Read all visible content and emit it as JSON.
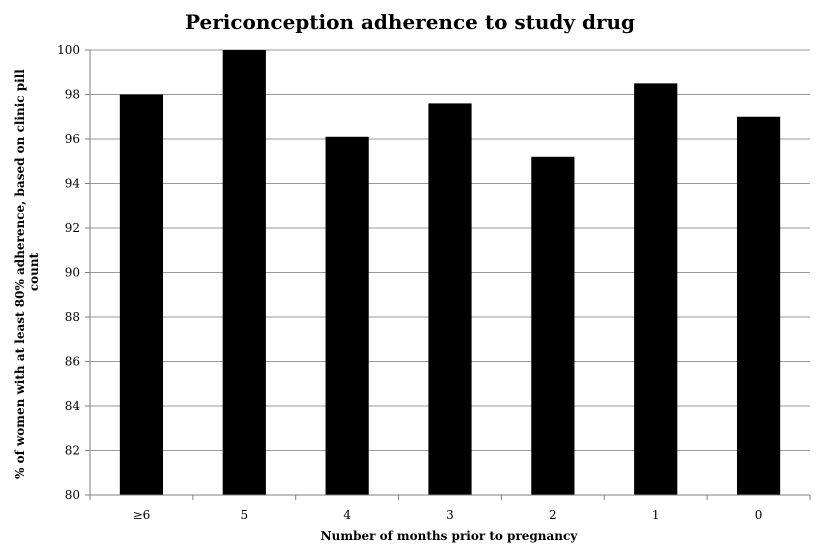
{
  "chart_data": {
    "type": "bar",
    "title": "Periconception adherence to study drug",
    "xlabel": "Number of months prior to pregnancy",
    "ylabel_lines": [
      "% of women with at least  80% adherence, based on clinic pill",
      "count"
    ],
    "categories": [
      "≥6",
      "5",
      "4",
      "3",
      "2",
      "1",
      "0"
    ],
    "values": [
      98.0,
      100.0,
      96.1,
      97.6,
      95.2,
      98.5,
      97.0
    ],
    "ylim": [
      80,
      100
    ],
    "yticks": [
      80,
      82,
      84,
      86,
      88,
      90,
      92,
      94,
      96,
      98,
      100
    ],
    "grid": true,
    "bar_color": "#000000"
  }
}
